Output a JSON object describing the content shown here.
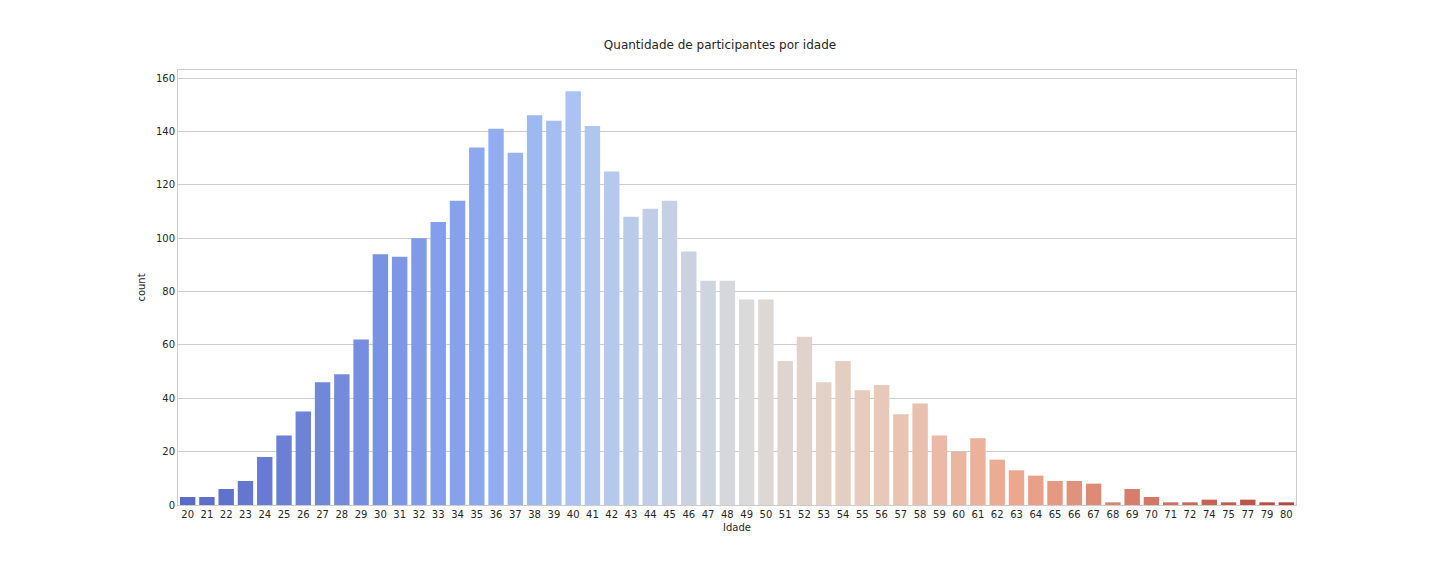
{
  "chart_data": {
    "type": "bar",
    "title": "Quantidade de participantes por idade",
    "x_label": "Idade",
    "y_label": "count",
    "categories": [
      "20",
      "21",
      "22",
      "23",
      "24",
      "25",
      "26",
      "27",
      "28",
      "29",
      "30",
      "31",
      "32",
      "33",
      "34",
      "35",
      "36",
      "37",
      "38",
      "39",
      "40",
      "41",
      "42",
      "43",
      "44",
      "45",
      "46",
      "47",
      "48",
      "49",
      "50",
      "51",
      "52",
      "53",
      "54",
      "55",
      "56",
      "57",
      "58",
      "59",
      "60",
      "61",
      "62",
      "63",
      "64",
      "65",
      "66",
      "67",
      "68",
      "69",
      "70",
      "71",
      "72",
      "74",
      "75",
      "77",
      "79",
      "80"
    ],
    "values": [
      3,
      3,
      6,
      9,
      18,
      26,
      35,
      46,
      49,
      62,
      94,
      93,
      100,
      106,
      114,
      134,
      141,
      132,
      146,
      144,
      155,
      142,
      125,
      108,
      111,
      114,
      95,
      84,
      84,
      77,
      77,
      54,
      63,
      46,
      54,
      43,
      45,
      34,
      38,
      26,
      20,
      25,
      17,
      13,
      11,
      9,
      9,
      8,
      1,
      6,
      3,
      1,
      1,
      2,
      1,
      2,
      1,
      1
    ],
    "colors": [
      "#5a6bc7",
      "#5d6fca",
      "#6073cc",
      "#6377cf",
      "#677bd2",
      "#6a7fd5",
      "#6d83d7",
      "#7087da",
      "#738add",
      "#768edf",
      "#7992e2",
      "#7d96e5",
      "#809ae8",
      "#839eea",
      "#86a2ed",
      "#8ca8ee",
      "#92adef",
      "#98b3ef",
      "#9eb8f0",
      "#a4bef1",
      "#aac3f2",
      "#afc6ef",
      "#b5c8ed",
      "#bacbea",
      "#bfcde7",
      "#c5d0e5",
      "#cad2e2",
      "#cfd5df",
      "#d5d7dd",
      "#dadada",
      "#dcd8d5",
      "#ded5d1",
      "#e0d3cc",
      "#e2d1c7",
      "#e4cec2",
      "#e6ccbe",
      "#e8c9b9",
      "#e9c4b3",
      "#e9bfad",
      "#eabaa7",
      "#eab6a1",
      "#ebb19a",
      "#ebac94",
      "#eca78e",
      "#e8a088",
      "#e59983",
      "#e1927d",
      "#dd8b77",
      "#da8472",
      "#d67d6c",
      "#d27666",
      "#cf6f61",
      "#cb685b",
      "#c86155",
      "#c45a50",
      "#c0534a",
      "#bd4c45",
      "#b9453f"
    ],
    "ylim": [
      0,
      163
    ],
    "yticks": [
      0,
      20,
      40,
      60,
      80,
      100,
      120,
      140,
      160
    ],
    "grid": true
  }
}
